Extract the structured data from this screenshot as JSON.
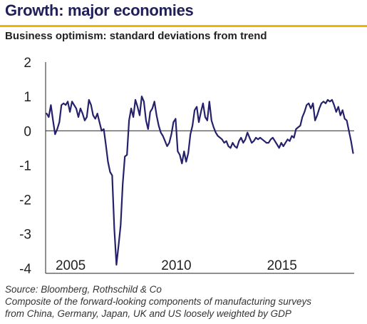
{
  "header": {
    "title": "Growth: major economies",
    "subtitle": "Business optimism: standard deviations from trend"
  },
  "footer": {
    "source": "Source: Bloomberg, Rothschild & Co",
    "note_line1": "Composite of the forward-looking components of manufacturing surveys",
    "note_line2": "from China, Germany, Japan, UK and US loosely weighted by GDP"
  },
  "colors": {
    "line": "#25216b",
    "accent_rule": "#f0b400",
    "title": "#1f1f5a"
  },
  "chart_data": {
    "type": "line",
    "title": "",
    "xlabel": "",
    "ylabel": "",
    "xlim": [
      2004.0,
      2018.5
    ],
    "ylim": [
      -4,
      2
    ],
    "yticks": [
      2,
      1,
      0,
      -1,
      -2,
      -3,
      -4
    ],
    "xticks": [
      2005,
      2010,
      2015
    ],
    "zero_line": true,
    "grid": false,
    "series": [
      {
        "name": "",
        "x": [
          2004.0,
          2004.1,
          2004.2,
          2004.3,
          2004.4,
          2004.5,
          2004.6,
          2004.7,
          2004.8,
          2004.9,
          2005.0,
          2005.1,
          2005.2,
          2005.3,
          2005.4,
          2005.5,
          2005.6,
          2005.7,
          2005.8,
          2005.9,
          2006.0,
          2006.1,
          2006.2,
          2006.3,
          2006.4,
          2006.5,
          2006.6,
          2006.7,
          2006.8,
          2006.9,
          2007.0,
          2007.1,
          2007.2,
          2007.3,
          2007.4,
          2007.5,
          2007.6,
          2007.7,
          2007.8,
          2007.9,
          2008.0,
          2008.1,
          2008.2,
          2008.3,
          2008.4,
          2008.5,
          2008.6,
          2008.7,
          2008.8,
          2008.9,
          2009.0,
          2009.1,
          2009.2,
          2009.3,
          2009.4,
          2009.5,
          2009.6,
          2009.7,
          2009.8,
          2009.9,
          2010.0,
          2010.1,
          2010.2,
          2010.3,
          2010.4,
          2010.5,
          2010.6,
          2010.7,
          2010.8,
          2010.9,
          2011.0,
          2011.1,
          2011.2,
          2011.3,
          2011.4,
          2011.5,
          2011.6,
          2011.7,
          2011.8,
          2011.9,
          2012.0,
          2012.1,
          2012.2,
          2012.3,
          2012.4,
          2012.5,
          2012.6,
          2012.7,
          2012.8,
          2012.9,
          2013.0,
          2013.1,
          2013.2,
          2013.3,
          2013.4,
          2013.5,
          2013.6,
          2013.7,
          2013.8,
          2013.9,
          2014.0,
          2014.1,
          2014.2,
          2014.3,
          2014.4,
          2014.5,
          2014.6,
          2014.7,
          2014.8,
          2014.9,
          2015.0,
          2015.1,
          2015.2,
          2015.3,
          2015.4,
          2015.5,
          2015.6,
          2015.7,
          2015.8,
          2015.9,
          2016.0,
          2016.1,
          2016.2,
          2016.3,
          2016.4,
          2016.5,
          2016.6,
          2016.7,
          2016.8,
          2016.9,
          2017.0,
          2017.1,
          2017.2,
          2017.3,
          2017.4,
          2017.5,
          2017.6,
          2017.7,
          2017.8,
          2017.9,
          2018.0,
          2018.1,
          2018.2,
          2018.3,
          2018.4,
          2018.5
        ],
        "values": [
          0.5,
          0.4,
          0.75,
          0.3,
          -0.1,
          0.05,
          0.25,
          0.75,
          0.8,
          0.75,
          0.85,
          0.55,
          0.85,
          0.75,
          0.65,
          0.4,
          0.65,
          0.5,
          0.3,
          0.4,
          0.9,
          0.75,
          0.45,
          0.35,
          0.5,
          0.25,
          0.0,
          0.05,
          -0.4,
          -0.9,
          -1.2,
          -1.3,
          -2.85,
          -3.9,
          -3.35,
          -2.75,
          -1.55,
          -0.75,
          -0.7,
          0.3,
          0.65,
          0.4,
          0.9,
          0.7,
          0.45,
          1.0,
          0.85,
          0.3,
          0.05,
          0.55,
          0.65,
          0.85,
          0.45,
          0.15,
          -0.05,
          -0.15,
          -0.3,
          -0.45,
          -0.35,
          -0.1,
          0.25,
          0.35,
          -0.6,
          -0.7,
          -0.95,
          -0.6,
          -0.9,
          -0.65,
          -0.1,
          0.15,
          0.6,
          0.7,
          0.25,
          0.55,
          0.8,
          0.4,
          0.3,
          0.85,
          0.3,
          0.1,
          -0.05,
          -0.15,
          -0.2,
          -0.25,
          -0.35,
          -0.3,
          -0.45,
          -0.5,
          -0.35,
          -0.45,
          -0.5,
          -0.3,
          -0.2,
          -0.35,
          -0.25,
          -0.05,
          -0.2,
          -0.35,
          -0.3,
          -0.2,
          -0.25,
          -0.2,
          -0.25,
          -0.3,
          -0.35,
          -0.35,
          -0.25,
          -0.2,
          -0.3,
          -0.4,
          -0.5,
          -0.35,
          -0.45,
          -0.35,
          -0.25,
          -0.3,
          -0.15,
          -0.2,
          0.05,
          0.1,
          0.15,
          0.4,
          0.55,
          0.75,
          0.8,
          0.65,
          0.8,
          0.3,
          0.45,
          0.65,
          0.8,
          0.85,
          0.8,
          0.9,
          0.85,
          0.9,
          0.75,
          0.55,
          0.7,
          0.45,
          0.6,
          0.35,
          0.3,
          0.0,
          -0.3,
          -0.65
        ]
      }
    ]
  }
}
